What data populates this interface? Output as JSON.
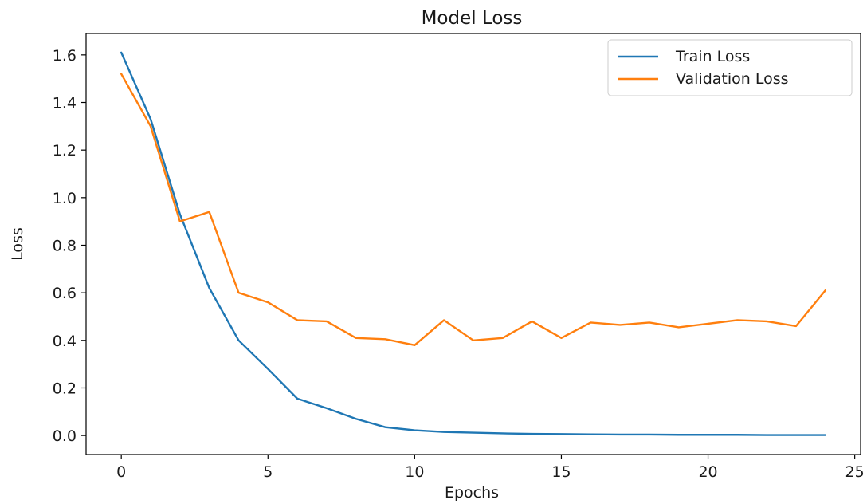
{
  "chart_data": {
    "type": "line",
    "title": "Model Loss",
    "xlabel": "Epochs",
    "ylabel": "Loss",
    "xlim": [
      -1.2,
      25.2
    ],
    "ylim": [
      -0.08,
      1.69
    ],
    "xticks": [
      0,
      5,
      10,
      15,
      20,
      25
    ],
    "yticks": [
      0.0,
      0.2,
      0.4,
      0.6,
      0.8,
      1.0,
      1.2,
      1.4,
      1.6
    ],
    "grid": false,
    "legend_position": "top-right",
    "x": [
      0,
      1,
      2,
      3,
      4,
      5,
      6,
      7,
      8,
      9,
      10,
      11,
      12,
      13,
      14,
      15,
      16,
      17,
      18,
      19,
      20,
      21,
      22,
      23,
      24
    ],
    "series": [
      {
        "name": "Train Loss",
        "color": "#1f77b4",
        "values": [
          1.61,
          1.33,
          0.93,
          0.62,
          0.4,
          0.28,
          0.155,
          0.115,
          0.07,
          0.035,
          0.022,
          0.015,
          0.012,
          0.009,
          0.007,
          0.006,
          0.005,
          0.004,
          0.004,
          0.003,
          0.003,
          0.003,
          0.002,
          0.002,
          0.002
        ]
      },
      {
        "name": "Validation Loss",
        "color": "#ff7f0e",
        "values": [
          1.52,
          1.3,
          0.9,
          0.94,
          0.6,
          0.56,
          0.485,
          0.48,
          0.41,
          0.405,
          0.38,
          0.485,
          0.4,
          0.41,
          0.48,
          0.41,
          0.475,
          0.465,
          0.475,
          0.455,
          0.47,
          0.485,
          0.48,
          0.46,
          0.61
        ]
      }
    ]
  }
}
